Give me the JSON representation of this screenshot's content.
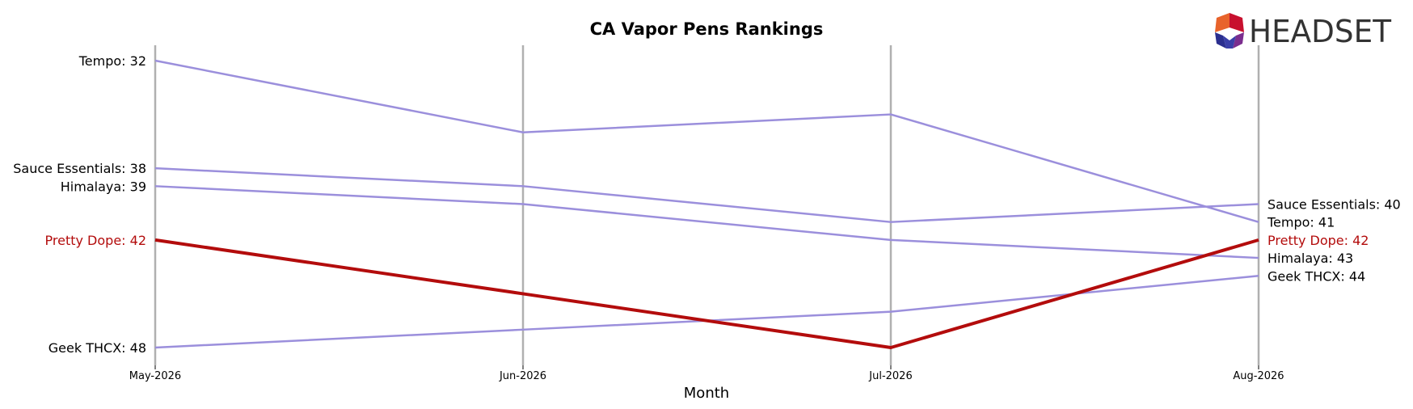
{
  "chart_data": {
    "type": "line",
    "title": "CA Vapor Pens Rankings",
    "xlabel": "Month",
    "ylabel": "",
    "categories": [
      "May-2026",
      "Jun-2026",
      "Jul-2026",
      "Aug-2026"
    ],
    "y_inverted": true,
    "ylim": [
      48,
      32
    ],
    "grid": "vertical lines at each month",
    "series": [
      {
        "name": "Tempo",
        "values": [
          32,
          36,
          35,
          41
        ],
        "highlight": false
      },
      {
        "name": "Sauce Essentials",
        "values": [
          38,
          39,
          41,
          40
        ],
        "highlight": false
      },
      {
        "name": "Himalaya",
        "values": [
          39,
          40,
          42,
          43
        ],
        "highlight": false
      },
      {
        "name": "Pretty Dope",
        "values": [
          42,
          45,
          48,
          42
        ],
        "highlight": true
      },
      {
        "name": "Geek THCX",
        "values": [
          48,
          47,
          46,
          44
        ],
        "highlight": false
      }
    ],
    "start_labels": [
      {
        "series": "Tempo",
        "text": "Tempo: 32"
      },
      {
        "series": "Sauce Essentials",
        "text": "Sauce Essentials: 38"
      },
      {
        "series": "Himalaya",
        "text": "Himalaya: 39"
      },
      {
        "series": "Pretty Dope",
        "text": "Pretty Dope: 42"
      },
      {
        "series": "Geek THCX",
        "text": "Geek THCX: 48"
      }
    ],
    "end_labels": [
      {
        "series": "Sauce Essentials",
        "text": "Sauce Essentials: 40"
      },
      {
        "series": "Tempo",
        "text": "Tempo: 41"
      },
      {
        "series": "Pretty Dope",
        "text": "Pretty Dope: 42"
      },
      {
        "series": "Himalaya",
        "text": "Himalaya: 43"
      },
      {
        "series": "Geek THCX",
        "text": "Geek THCX: 44"
      }
    ],
    "colors": {
      "line": "#9b8fdc",
      "highlight": "#b30c0c",
      "highlight_label": "#b30c0c",
      "label": "#000000",
      "grid": "#b0b0b0"
    }
  },
  "logo": {
    "text": "HEADSET",
    "colors": [
      "#c8102e",
      "#e8632b",
      "#7b2d8e",
      "#2b2f8f"
    ]
  }
}
